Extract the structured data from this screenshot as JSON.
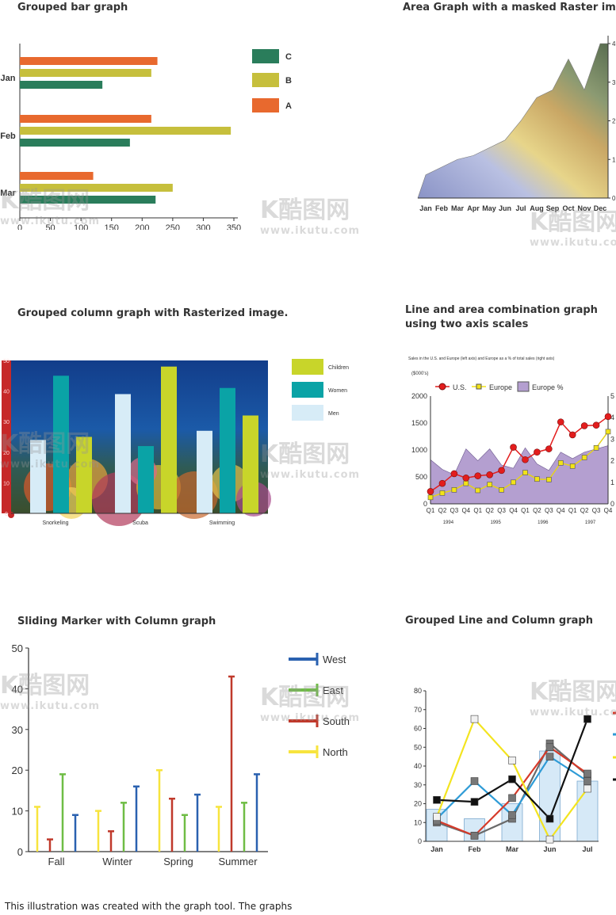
{
  "titles": {
    "p1": "Grouped bar graph",
    "p2": "Area Graph with a masked Raster image.",
    "p3": "Grouped column graph with Rasterized image.",
    "p4a": "Line and area combination graph",
    "p4b": "using two axis scales",
    "p5": "Sliding Marker with Column graph",
    "p6": "Grouped Line and Column graph"
  },
  "watermark": {
    "logo": "K酷图网",
    "url": "www.ikutu.com"
  },
  "footer": "This illustration was created with the graph tool. The graphs",
  "colors": {
    "A": "#e8692e",
    "B": "#c6bf3c",
    "C": "#2a7d5b",
    "children": "#c8d52a",
    "women": "#0aa3a6",
    "men": "#d7ecf7",
    "west": "#2a61b0",
    "east": "#6fbd45",
    "south": "#c0392b",
    "north": "#f7e43e",
    "us": "#e31d1d",
    "europe": "#f2e318",
    "europe_pct": "#b49fd0"
  },
  "chart_data": [
    {
      "type": "bar",
      "orientation": "horizontal",
      "title": "Grouped bar graph",
      "categories": [
        "Jan",
        "Feb",
        "Mar"
      ],
      "series": [
        {
          "name": "C",
          "values": [
            135,
            180,
            222
          ]
        },
        {
          "name": "B",
          "values": [
            215,
            345,
            250
          ]
        },
        {
          "name": "A",
          "values": [
            225,
            215,
            120
          ]
        }
      ],
      "xlim": [
        0,
        350
      ],
      "xticks": [
        "0",
        "50",
        "100",
        "150",
        "200",
        "250",
        "300",
        "350"
      ],
      "legend": "right"
    },
    {
      "type": "area",
      "title": "Area Graph with a masked Raster image.",
      "categories": [
        "Jan",
        "Feb",
        "Mar",
        "Apr",
        "May",
        "Jun",
        "Jul",
        "Aug",
        "Sep",
        "Oct",
        "Nov",
        "Dec"
      ],
      "values": [
        0.6,
        0.8,
        1.0,
        1.1,
        1.3,
        1.5,
        2.0,
        2.6,
        2.8,
        3.6,
        2.8,
        4.0
      ],
      "ylim": [
        0,
        4
      ],
      "yticks": [
        "0",
        "1",
        "2",
        "3",
        "4"
      ]
    },
    {
      "type": "bar",
      "title": "Grouped column graph with Rasterized image.",
      "categories": [
        "Snorkeling",
        "Scuba",
        "Swimming"
      ],
      "series": [
        {
          "name": "Men",
          "values": [
            24,
            39,
            27
          ]
        },
        {
          "name": "Women",
          "values": [
            45,
            22,
            41
          ]
        },
        {
          "name": "Children",
          "values": [
            25,
            48,
            32
          ]
        }
      ],
      "ylim": [
        0,
        50
      ],
      "yticks": [
        "0",
        "10",
        "20",
        "30",
        "40",
        "50"
      ],
      "legend": "right"
    },
    {
      "type": "line",
      "title": "Line and area combination graph using two axis scales",
      "subtitle": "Sales in the U.S. and Europe (left axis) and Europe as a % of total sales (right axis)",
      "ylabel": "($000's)",
      "quarters": [
        "Q1",
        "Q2",
        "Q3",
        "Q4",
        "Q1",
        "Q2",
        "Q3",
        "Q4",
        "Q1",
        "Q2",
        "Q3",
        "Q4",
        "Q1",
        "Q2",
        "Q3",
        "Q4"
      ],
      "years": [
        "1994",
        "1995",
        "1996",
        "1997"
      ],
      "series": [
        {
          "name": "U.S.",
          "values": [
            230,
            380,
            560,
            480,
            520,
            540,
            620,
            1050,
            820,
            960,
            1020,
            1520,
            1280,
            1450,
            1460,
            1620
          ]
        },
        {
          "name": "Europe",
          "values": [
            120,
            200,
            260,
            380,
            250,
            360,
            260,
            400,
            580,
            460,
            450,
            760,
            700,
            860,
            1040,
            1340
          ]
        },
        {
          "name": "Europe %",
          "values": [
            41,
            32,
            27,
            51,
            40,
            51,
            36,
            33,
            52,
            37,
            31,
            48,
            42,
            48,
            51,
            54
          ]
        }
      ],
      "ylim": [
        0,
        2000
      ],
      "yticks": [
        "0",
        "500",
        "1000",
        "1500",
        "2000"
      ],
      "y2ticks": [
        "0",
        "1",
        "2",
        "3",
        "4",
        "5"
      ],
      "legend": "top"
    },
    {
      "type": "bar",
      "title": "Sliding Marker with Column graph",
      "categories": [
        "Fall",
        "Winter",
        "Spring",
        "Summer"
      ],
      "series": [
        {
          "name": "North",
          "values": [
            11,
            10,
            20,
            11
          ]
        },
        {
          "name": "South",
          "values": [
            3,
            5,
            13,
            43
          ]
        },
        {
          "name": "East",
          "values": [
            19,
            12,
            9,
            12
          ]
        },
        {
          "name": "West",
          "values": [
            9,
            16,
            14,
            19
          ]
        }
      ],
      "ylim": [
        0,
        50
      ],
      "yticks": [
        "0",
        "10",
        "20",
        "30",
        "40",
        "50"
      ],
      "legend": "right"
    },
    {
      "type": "line",
      "title": "Grouped Line and Column graph",
      "categories": [
        "Jan",
        "Feb",
        "Mar",
        "Jun",
        "Jul"
      ],
      "columns": [
        17,
        12,
        20,
        48,
        32
      ],
      "series": [
        {
          "name": "black",
          "values": [
            22,
            21,
            33,
            12,
            65
          ]
        },
        {
          "name": "yellow",
          "values": [
            13,
            65,
            43,
            1,
            28
          ]
        },
        {
          "name": "red",
          "values": [
            11,
            3,
            23,
            50,
            36
          ]
        },
        {
          "name": "blue",
          "values": [
            12,
            32,
            14,
            45,
            32
          ]
        },
        {
          "name": "gray",
          "values": [
            10,
            3,
            12,
            52,
            35
          ]
        }
      ],
      "ylim": [
        0,
        80
      ],
      "yticks": [
        "0",
        "10",
        "20",
        "30",
        "40",
        "50",
        "60",
        "70",
        "80"
      ]
    }
  ]
}
